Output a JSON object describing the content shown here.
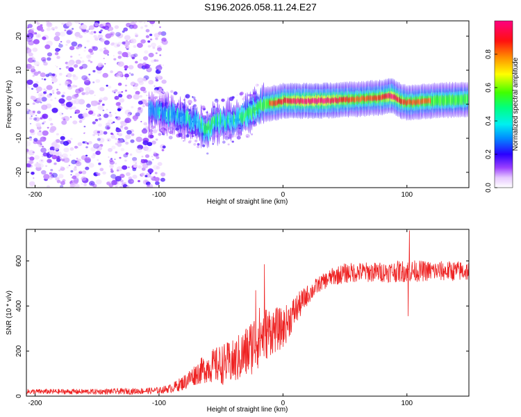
{
  "title": "S196.2026.058.11.24.E27",
  "chart_data": [
    {
      "type": "heatmap",
      "xlabel": "Height of straight line (km)",
      "ylabel": "Frequency (Hz)",
      "xlim": [
        -207,
        150
      ],
      "ylim": [
        -24.5,
        24.5
      ],
      "xticks": [
        -200,
        -100,
        0,
        100
      ],
      "yticks": [
        -20,
        -10,
        0,
        10,
        20
      ],
      "colorbar": {
        "label": "Normalized spectral amplitude",
        "range": [
          0.0,
          1.0
        ],
        "ticks": [
          0.0,
          0.2,
          0.4,
          0.6,
          0.8
        ],
        "tick_labels": [
          "0.0",
          "0.2",
          "0.4",
          "0.6",
          "0.8"
        ]
      },
      "ridge": {
        "description": "dominant frequency track vs height",
        "x": [
          -100,
          -90,
          -80,
          -70,
          -62,
          -55,
          -45,
          -35,
          -25,
          -15,
          -5,
          0,
          10,
          30,
          60,
          80,
          88,
          95,
          100,
          120,
          150
        ],
        "freq": [
          -2,
          -3,
          -4,
          -5,
          -8,
          -5,
          -5,
          -4,
          -2,
          0,
          0.5,
          1,
          1,
          1,
          1.5,
          2,
          2.5,
          1,
          0.5,
          1,
          1.5
        ],
        "amplitude": [
          0.2,
          0.25,
          0.3,
          0.35,
          0.5,
          0.45,
          0.4,
          0.45,
          0.5,
          0.55,
          0.7,
          0.75,
          0.85,
          0.95,
          0.6,
          0.7,
          0.9,
          0.7,
          0.65,
          0.6,
          0.55
        ]
      }
    },
    {
      "type": "line",
      "xlabel": "Height of straight line (km)",
      "ylabel": "SNR (10 * v/v)",
      "xlim": [
        -207,
        150
      ],
      "ylim": [
        0,
        740
      ],
      "xticks": [
        -200,
        -100,
        0,
        100
      ],
      "yticks": [
        0,
        200,
        400,
        600
      ],
      "series": [
        {
          "name": "SNR",
          "color": "#ee2222",
          "envelope_x": [
            -207,
            -150,
            -120,
            -100,
            -90,
            -80,
            -70,
            -60,
            -50,
            -40,
            -30,
            -20,
            -10,
            0,
            10,
            20,
            30,
            40,
            50,
            60,
            80,
            100,
            120,
            150
          ],
          "envelope_mean": [
            20,
            20,
            22,
            25,
            35,
            60,
            100,
            130,
            140,
            150,
            190,
            260,
            290,
            300,
            380,
            450,
            500,
            530,
            545,
            550,
            550,
            555,
            555,
            555
          ],
          "envelope_spread": [
            12,
            12,
            14,
            15,
            20,
            35,
            50,
            70,
            90,
            100,
            120,
            140,
            110,
            90,
            70,
            45,
            35,
            40,
            45,
            45,
            45,
            50,
            45,
            45
          ],
          "spikes": [
            {
              "x": 102,
              "y": 735
            },
            {
              "x": 101,
              "y": 355
            },
            {
              "x": -15,
              "y": 585
            },
            {
              "x": -22,
              "y": 470
            }
          ]
        }
      ]
    }
  ]
}
